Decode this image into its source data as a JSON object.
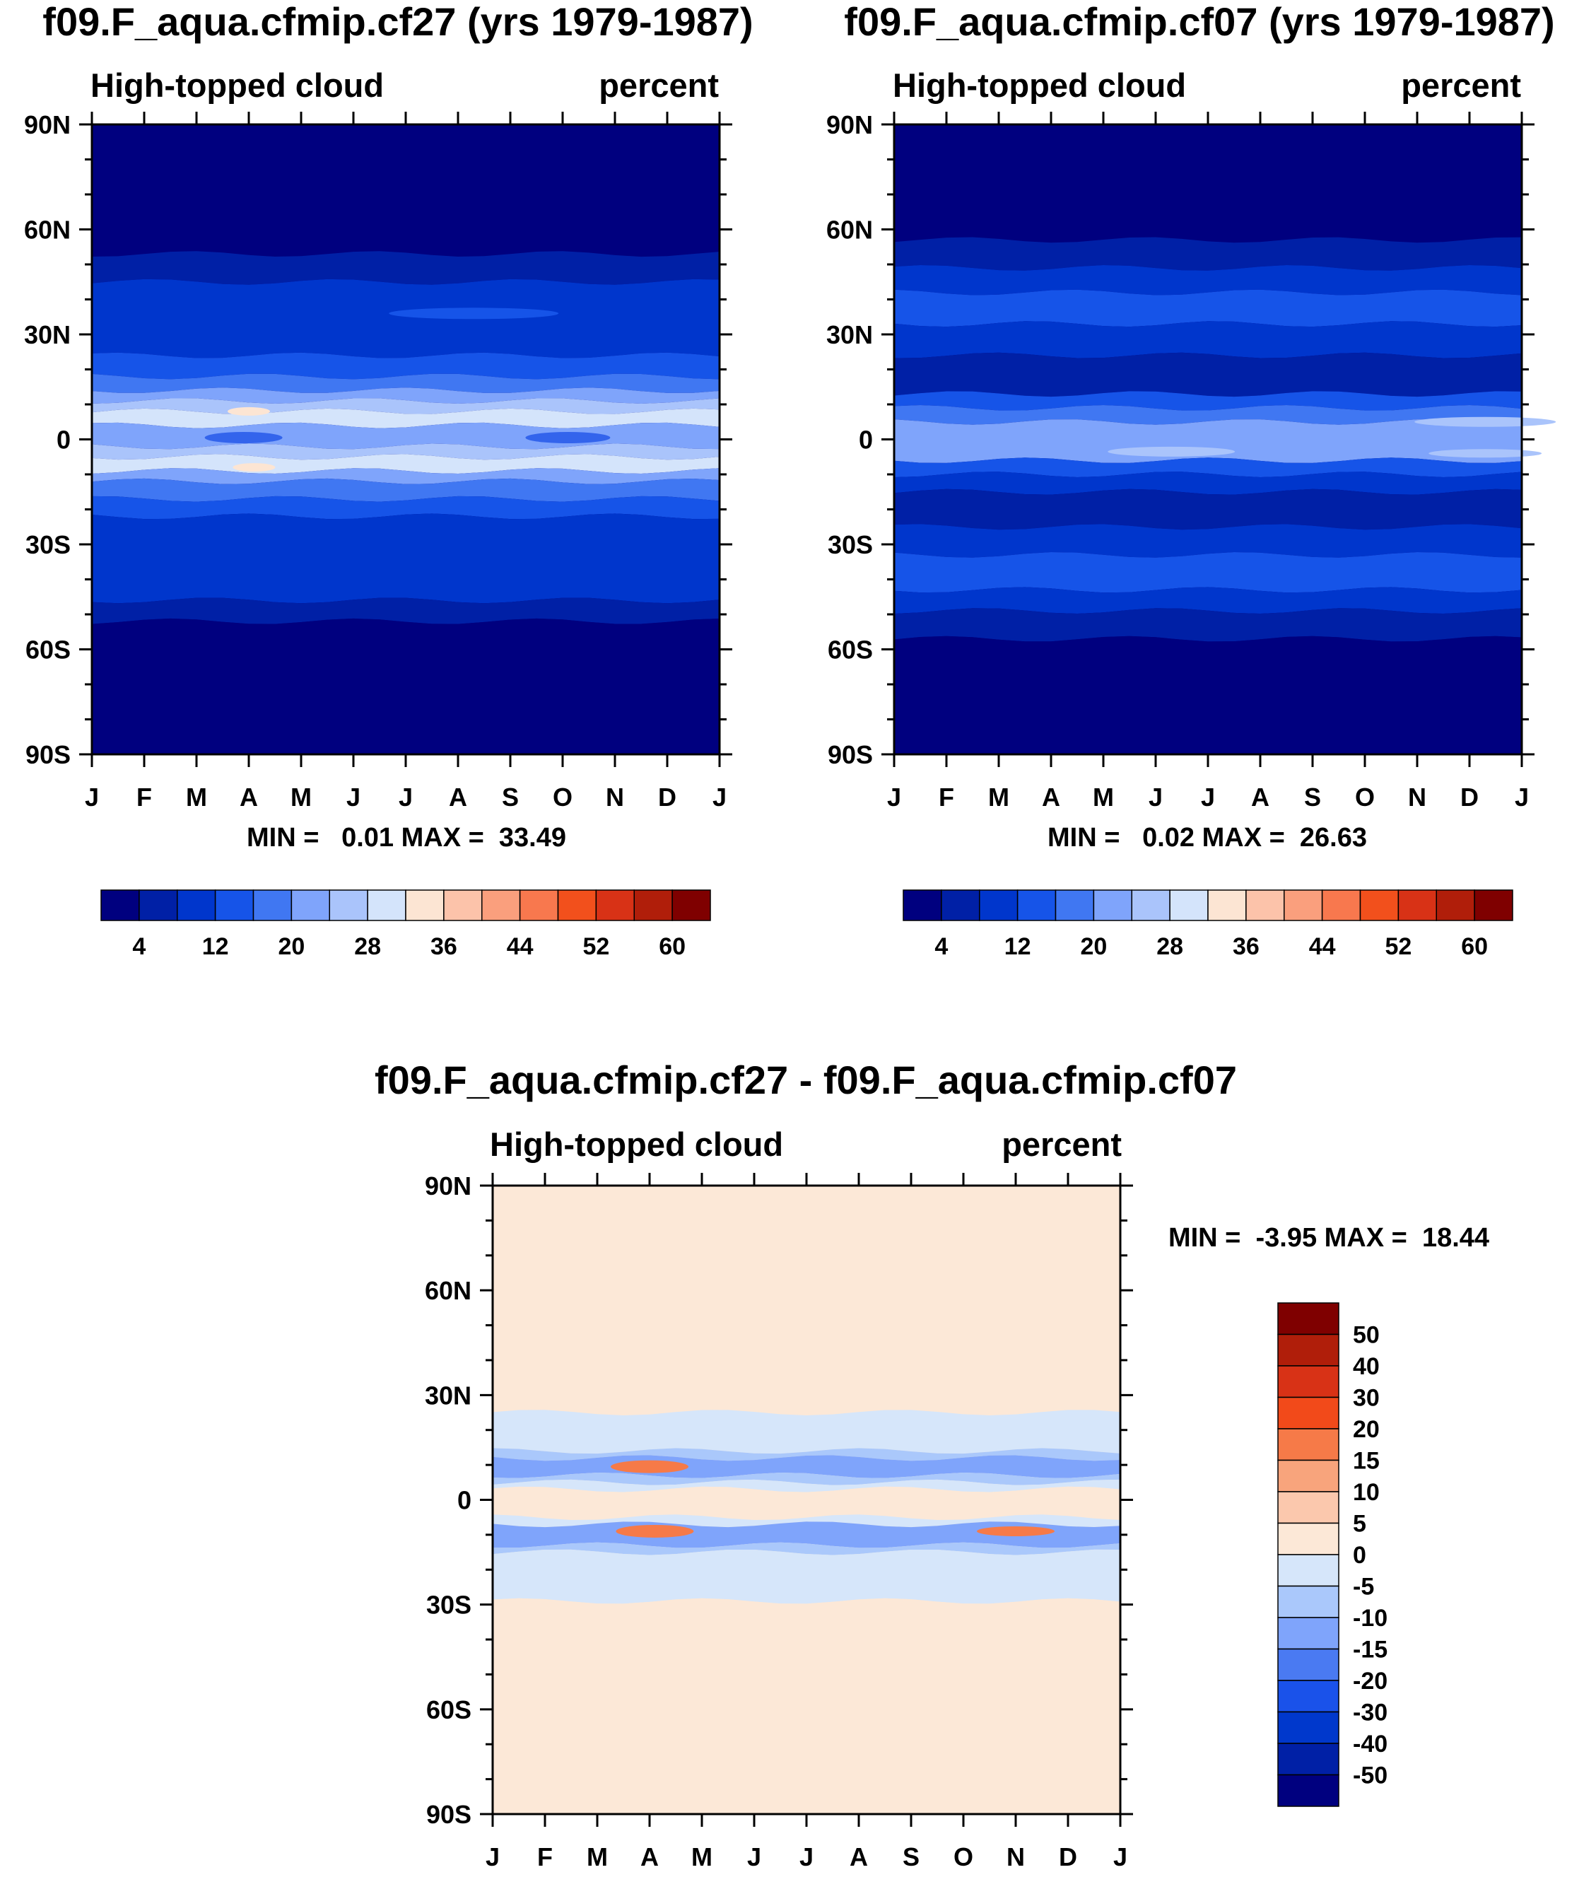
{
  "figure": {
    "panel1": {
      "title": "f09.F_aqua.cfmip.cf27 (yrs 1979-1987)",
      "left_label": "High-topped cloud",
      "right_label": "percent",
      "stats": "MIN =   0.01 MAX =  33.49"
    },
    "panel2": {
      "title": "f09.F_aqua.cfmip.cf07 (yrs 1979-1987)",
      "left_label": "High-topped cloud",
      "right_label": "percent",
      "stats": "MIN =   0.02 MAX =  26.63"
    },
    "panel3": {
      "title": "f09.F_aqua.cfmip.cf27 - f09.F_aqua.cfmip.cf07",
      "left_label": "High-topped cloud",
      "right_label": "percent",
      "stats": "MIN =  -3.95 MAX =  18.44"
    }
  },
  "chart_data": [
    {
      "type": "heatmap",
      "title": "f09.F_aqua.cfmip.cf27 (yrs 1979-1987)",
      "subtitle_left": "High-topped cloud",
      "units": "percent",
      "x_ticklabels": [
        "J",
        "F",
        "M",
        "A",
        "M",
        "J",
        "J",
        "A",
        "S",
        "O",
        "N",
        "D",
        "J"
      ],
      "y_ticklabels": [
        "90N",
        "60N",
        "30N",
        "0",
        "30S",
        "60S",
        "90S"
      ],
      "ylim": [
        -90,
        90
      ],
      "min": 0.01,
      "max": 33.49,
      "colorbar_levels": [
        "4",
        "12",
        "20",
        "28",
        "36",
        "44",
        "52",
        "60"
      ],
      "bands": [
        {
          "lat_top": 90,
          "lat_bottom": 53,
          "level": 0
        },
        {
          "lat_top": 53,
          "lat_bottom": 45,
          "level": 1
        },
        {
          "lat_top": 45,
          "lat_bottom": 24,
          "level": 2
        },
        {
          "lat_top": 24,
          "lat_bottom": 18,
          "level": 3
        },
        {
          "lat_top": 18,
          "lat_bottom": 14,
          "level": 4
        },
        {
          "lat_top": 14,
          "lat_bottom": 11,
          "level": 5
        },
        {
          "lat_top": 11,
          "lat_bottom": 8,
          "level": 6
        },
        {
          "lat_top": 8,
          "lat_bottom": 4,
          "level": 7
        },
        {
          "lat_top": 4,
          "lat_bottom": -2,
          "level": 5
        },
        {
          "lat_top": -2,
          "lat_bottom": -5,
          "level": 6
        },
        {
          "lat_top": -5,
          "lat_bottom": -9,
          "level": 7
        },
        {
          "lat_top": -9,
          "lat_bottom": -12,
          "level": 5
        },
        {
          "lat_top": -12,
          "lat_bottom": -17,
          "level": 4
        },
        {
          "lat_top": -17,
          "lat_bottom": -22,
          "level": 3
        },
        {
          "lat_top": -22,
          "lat_bottom": -46,
          "level": 2
        },
        {
          "lat_top": -46,
          "lat_bottom": -52,
          "level": 1
        },
        {
          "lat_top": -52,
          "lat_bottom": -90,
          "level": 0
        }
      ]
    },
    {
      "type": "heatmap",
      "title": "f09.F_aqua.cfmip.cf07 (yrs 1979-1987)",
      "subtitle_left": "High-topped cloud",
      "units": "percent",
      "x_ticklabels": [
        "J",
        "F",
        "M",
        "A",
        "M",
        "J",
        "J",
        "A",
        "S",
        "O",
        "N",
        "D",
        "J"
      ],
      "y_ticklabels": [
        "90N",
        "60N",
        "30N",
        "0",
        "30S",
        "60S",
        "90S"
      ],
      "ylim": [
        -90,
        90
      ],
      "min": 0.02,
      "max": 26.63,
      "colorbar_levels": [
        "4",
        "12",
        "20",
        "28",
        "36",
        "44",
        "52",
        "60"
      ],
      "bands": [
        {
          "lat_top": 90,
          "lat_bottom": 57,
          "level": 0
        },
        {
          "lat_top": 57,
          "lat_bottom": 49,
          "level": 1
        },
        {
          "lat_top": 49,
          "lat_bottom": 42,
          "level": 2
        },
        {
          "lat_top": 42,
          "lat_bottom": 33,
          "level": 3
        },
        {
          "lat_top": 33,
          "lat_bottom": 24,
          "level": 2
        },
        {
          "lat_top": 24,
          "lat_bottom": 13,
          "level": 1
        },
        {
          "lat_top": 13,
          "lat_bottom": 9,
          "level": 3
        },
        {
          "lat_top": 9,
          "lat_bottom": 5,
          "level": 4
        },
        {
          "lat_top": 5,
          "lat_bottom": -6,
          "level": 5
        },
        {
          "lat_top": -6,
          "lat_bottom": -10,
          "level": 3
        },
        {
          "lat_top": -10,
          "lat_bottom": -15,
          "level": 2
        },
        {
          "lat_top": -15,
          "lat_bottom": -25,
          "level": 1
        },
        {
          "lat_top": -25,
          "lat_bottom": -33,
          "level": 2
        },
        {
          "lat_top": -33,
          "lat_bottom": -43,
          "level": 3
        },
        {
          "lat_top": -43,
          "lat_bottom": -49,
          "level": 2
        },
        {
          "lat_top": -49,
          "lat_bottom": -57,
          "level": 1
        },
        {
          "lat_top": -57,
          "lat_bottom": -90,
          "level": 0
        }
      ]
    },
    {
      "type": "heatmap",
      "title": "f09.F_aqua.cfmip.cf27 - f09.F_aqua.cfmip.cf07",
      "subtitle_left": "High-topped cloud",
      "units": "percent",
      "x_ticklabels": [
        "J",
        "F",
        "M",
        "A",
        "M",
        "J",
        "J",
        "A",
        "S",
        "O",
        "N",
        "D",
        "J"
      ],
      "y_ticklabels": [
        "90N",
        "60N",
        "30N",
        "0",
        "30S",
        "60S",
        "90S"
      ],
      "ylim": [
        -90,
        90
      ],
      "min": -3.95,
      "max": 18.44,
      "colorbar_levels": [
        "50",
        "40",
        "30",
        "20",
        "15",
        "10",
        "5",
        "0",
        "-5",
        "-10",
        "-15",
        "-20",
        "-30",
        "-40",
        "-50"
      ],
      "bands": [
        {
          "lat_top": 90,
          "lat_bottom": 25,
          "level": 7
        },
        {
          "lat_top": 25,
          "lat_bottom": 14,
          "level": 8
        },
        {
          "lat_top": 14,
          "lat_bottom": 12,
          "level": 9
        },
        {
          "lat_top": 12,
          "lat_bottom": 7,
          "level": 10
        },
        {
          "lat_top": 7,
          "lat_bottom": 5,
          "level": 9
        },
        {
          "lat_top": 5,
          "lat_bottom": 3,
          "level": 8
        },
        {
          "lat_top": 3,
          "lat_bottom": -5,
          "level": 7
        },
        {
          "lat_top": -5,
          "lat_bottom": -7,
          "level": 8
        },
        {
          "lat_top": -7,
          "lat_bottom": -13,
          "level": 10
        },
        {
          "lat_top": -13,
          "lat_bottom": -15,
          "level": 9
        },
        {
          "lat_top": -15,
          "lat_bottom": -29,
          "level": 8
        },
        {
          "lat_top": -29,
          "lat_bottom": -90,
          "level": 7
        }
      ]
    }
  ],
  "colors": {
    "abs_palette": [
      "#00007f",
      "#0020a6",
      "#0036cc",
      "#1654e8",
      "#4077f2",
      "#7fa4fb",
      "#aac4fb",
      "#d4e4fb",
      "#fce5d3",
      "#fcc3aa",
      "#fa9f7d",
      "#f8784e",
      "#f2501c",
      "#d83216",
      "#b01e0a",
      "#7f0000"
    ],
    "diff_palette": [
      "#7f0000",
      "#b01e0a",
      "#d83216",
      "#f24a1a",
      "#f67a48",
      "#f8a47c",
      "#fbc8ad",
      "#fce8d7",
      "#d6e6fa",
      "#aac8fb",
      "#7fa4fb",
      "#4a7af2",
      "#1a52ea",
      "#0038cc",
      "#0020a6",
      "#00007f"
    ],
    "cf27_equator_band": "#4a7af2",
    "cf27_equator_patch": "#3364ec"
  }
}
